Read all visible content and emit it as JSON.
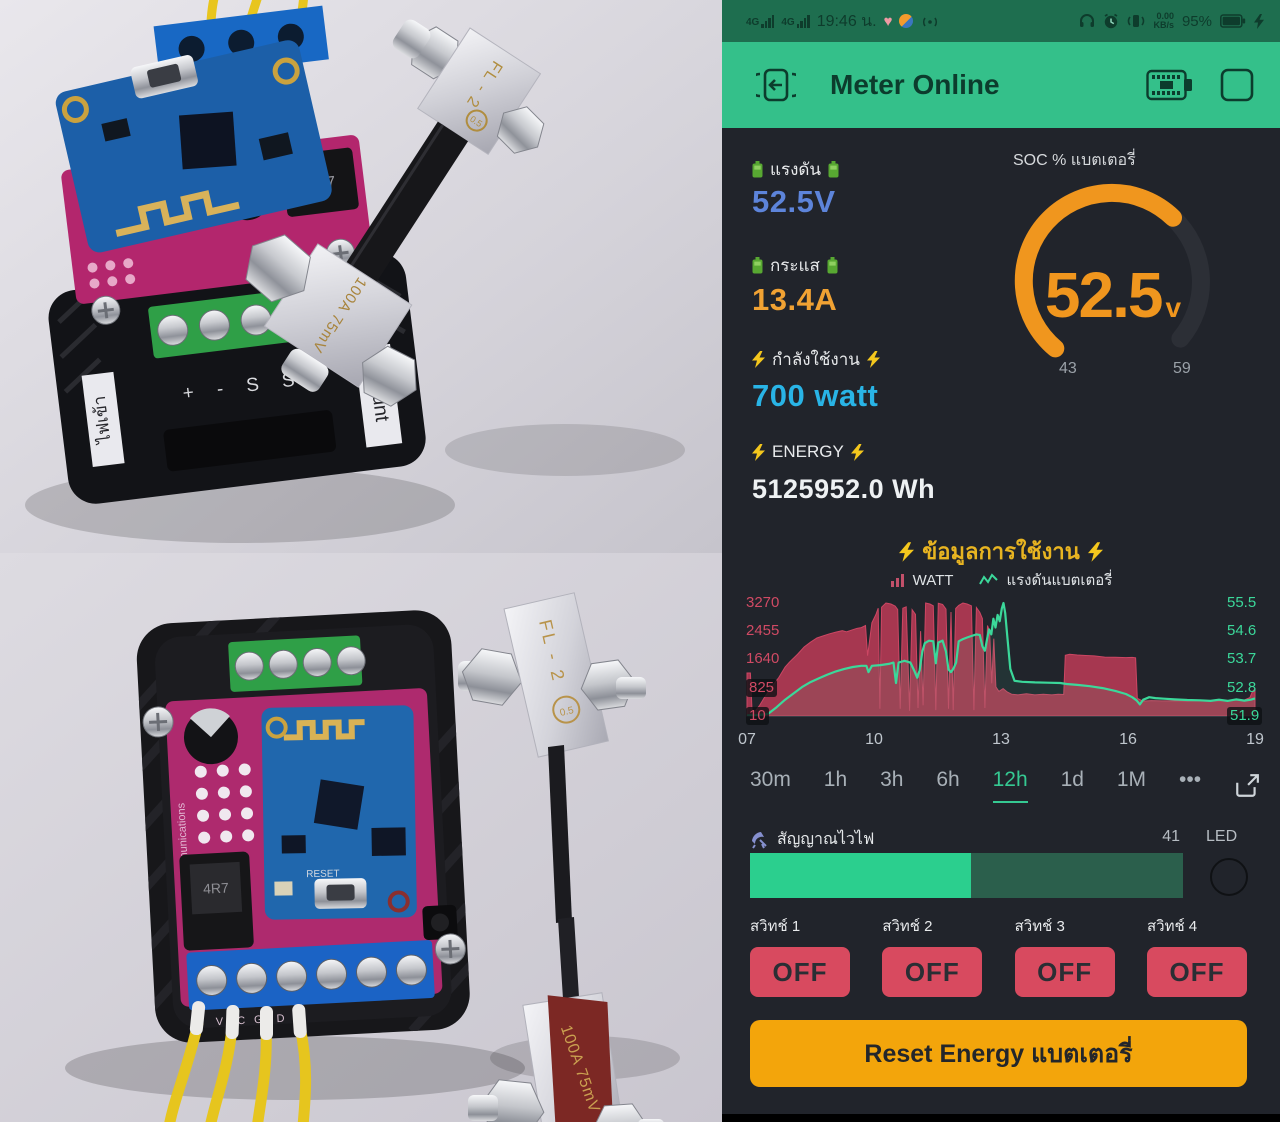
{
  "status_bar": {
    "sim1": "4G",
    "sim2": "4G",
    "time": "19:46 น.",
    "net_speed_top": "0.00",
    "net_speed_bottom": "KB/s",
    "battery_percent": "95%"
  },
  "header": {
    "title": "Meter Online"
  },
  "metrics": {
    "voltage": {
      "label": "แรงดัน",
      "value": "52.5V"
    },
    "current": {
      "label": "กระแส",
      "value": "13.4A"
    },
    "power": {
      "label": "กำลังใช้งาน",
      "value": "700 watt"
    },
    "energy": {
      "label": "ENERGY",
      "value": "5125952.0 Wh"
    }
  },
  "gauge": {
    "title": "SOC % แบตเตอรี่",
    "value": "52.5",
    "unit": "v",
    "min": "43",
    "max": "59"
  },
  "chart_data": {
    "type": "area",
    "title": "ข้อมูลการใช้งาน",
    "legend": [
      {
        "name": "WATT",
        "color": "#c2506a"
      },
      {
        "name": "แรงดันแบตเตอรี่",
        "color": "#3bd89a"
      }
    ],
    "x_ticks": [
      "07",
      "10",
      "13",
      "16",
      "19"
    ],
    "x_range": [
      7,
      19
    ],
    "grid": false,
    "legend_position": "top",
    "left_axis": {
      "name": "WATT",
      "color": "#d04a64",
      "ticks": [
        "3270",
        "2455",
        "1640",
        "825",
        "10"
      ]
    },
    "right_axis": {
      "name": "แรงดันแบตเตอรี่",
      "color": "#3bd89a",
      "ticks": [
        "55.5",
        "54.6",
        "53.7",
        "52.8",
        "51.9"
      ]
    },
    "series": [
      {
        "name": "WATT",
        "type": "area",
        "axis": "left",
        "color": "#b23a54",
        "points": [
          [
            7.0,
            1250
          ],
          [
            7.08,
            1250
          ],
          [
            7.12,
            120
          ],
          [
            7.2,
            160
          ],
          [
            7.3,
            320
          ],
          [
            7.4,
            520
          ],
          [
            7.5,
            700
          ],
          [
            7.6,
            880
          ],
          [
            7.75,
            1120
          ],
          [
            7.9,
            1420
          ],
          [
            8.0,
            1560
          ],
          [
            8.1,
            1680
          ],
          [
            8.2,
            1800
          ],
          [
            8.35,
            2000
          ],
          [
            8.5,
            2140
          ],
          [
            8.65,
            2260
          ],
          [
            8.8,
            2320
          ],
          [
            8.95,
            2380
          ],
          [
            9.1,
            2430
          ],
          [
            9.25,
            2470
          ],
          [
            9.35,
            2440
          ],
          [
            9.5,
            2500
          ],
          [
            9.6,
            2540
          ],
          [
            9.7,
            2560
          ],
          [
            9.8,
            2620
          ],
          [
            9.85,
            1750
          ],
          [
            9.95,
            2700
          ],
          [
            10.05,
            2950
          ],
          [
            10.1,
            3120
          ],
          [
            10.14,
            220
          ],
          [
            10.18,
            3150
          ],
          [
            10.28,
            3270
          ],
          [
            10.4,
            3240
          ],
          [
            10.5,
            3180
          ],
          [
            10.56,
            3080
          ],
          [
            10.62,
            220
          ],
          [
            10.68,
            3120
          ],
          [
            10.76,
            3160
          ],
          [
            10.84,
            160
          ],
          [
            10.9,
            3080
          ],
          [
            10.98,
            2940
          ],
          [
            11.04,
            240
          ],
          [
            11.1,
            2460
          ],
          [
            11.16,
            320
          ],
          [
            11.22,
            3270
          ],
          [
            11.32,
            3240
          ],
          [
            11.4,
            3190
          ],
          [
            11.46,
            180
          ],
          [
            11.52,
            3260
          ],
          [
            11.62,
            3230
          ],
          [
            11.7,
            3090
          ],
          [
            11.76,
            220
          ],
          [
            11.82,
            3010
          ],
          [
            11.87,
            180
          ],
          [
            11.93,
            3110
          ],
          [
            12.0,
            3200
          ],
          [
            12.1,
            3270
          ],
          [
            12.2,
            3240
          ],
          [
            12.3,
            3190
          ],
          [
            12.36,
            180
          ],
          [
            12.42,
            3140
          ],
          [
            12.5,
            3000
          ],
          [
            12.56,
            2820
          ],
          [
            12.62,
            240
          ],
          [
            12.68,
            2620
          ],
          [
            12.73,
            2460
          ],
          [
            12.78,
            950
          ],
          [
            12.83,
            2240
          ],
          [
            12.88,
            850
          ],
          [
            12.95,
            720
          ],
          [
            13.05,
            800
          ],
          [
            13.15,
            700
          ],
          [
            13.25,
            640
          ],
          [
            13.4,
            620
          ],
          [
            13.6,
            650
          ],
          [
            13.8,
            620
          ],
          [
            14.0,
            640
          ],
          [
            14.2,
            620
          ],
          [
            14.35,
            640
          ],
          [
            14.48,
            630
          ],
          [
            14.52,
            1760
          ],
          [
            14.62,
            1790
          ],
          [
            14.8,
            1770
          ],
          [
            15.0,
            1755
          ],
          [
            15.2,
            1745
          ],
          [
            15.45,
            1710
          ],
          [
            15.7,
            1705
          ],
          [
            15.95,
            1695
          ],
          [
            16.1,
            1700
          ],
          [
            16.18,
            1690
          ],
          [
            16.22,
            520
          ],
          [
            16.35,
            440
          ],
          [
            16.55,
            455
          ],
          [
            16.8,
            445
          ],
          [
            17.1,
            450
          ],
          [
            17.4,
            440
          ],
          [
            17.7,
            450
          ],
          [
            18.0,
            442
          ],
          [
            18.3,
            452
          ],
          [
            18.55,
            462
          ],
          [
            18.75,
            472
          ],
          [
            18.88,
            540
          ],
          [
            18.94,
            720
          ],
          [
            19.0,
            790
          ]
        ]
      },
      {
        "name": "แรงดันแบตเตอรี่",
        "type": "line",
        "axis": "right",
        "color": "#3bd89a",
        "points": [
          [
            7.0,
            51.92
          ],
          [
            7.25,
            51.93
          ],
          [
            7.5,
            51.97
          ],
          [
            7.7,
            52.18
          ],
          [
            7.9,
            52.42
          ],
          [
            8.1,
            52.62
          ],
          [
            8.3,
            52.82
          ],
          [
            8.5,
            52.98
          ],
          [
            8.7,
            53.1
          ],
          [
            8.9,
            53.22
          ],
          [
            9.1,
            53.32
          ],
          [
            9.3,
            53.4
          ],
          [
            9.5,
            53.46
          ],
          [
            9.7,
            53.5
          ],
          [
            9.82,
            53.5
          ],
          [
            9.87,
            53.3
          ],
          [
            9.95,
            53.5
          ],
          [
            10.15,
            53.52
          ],
          [
            10.35,
            53.56
          ],
          [
            10.46,
            53.6
          ],
          [
            10.52,
            52.95
          ],
          [
            10.58,
            53.6
          ],
          [
            10.72,
            53.66
          ],
          [
            10.86,
            53.6
          ],
          [
            10.96,
            53.32
          ],
          [
            11.02,
            53.12
          ],
          [
            11.08,
            53.36
          ],
          [
            11.14,
            53.95
          ],
          [
            11.2,
            54.22
          ],
          [
            11.3,
            54.3
          ],
          [
            11.4,
            54.28
          ],
          [
            11.46,
            53.58
          ],
          [
            11.52,
            54.24
          ],
          [
            11.62,
            54.3
          ],
          [
            11.7,
            53.95
          ],
          [
            11.76,
            53.38
          ],
          [
            11.82,
            53.3
          ],
          [
            11.88,
            53.42
          ],
          [
            11.94,
            53.6
          ],
          [
            12.0,
            54.28
          ],
          [
            12.1,
            54.35
          ],
          [
            12.2,
            54.4
          ],
          [
            12.3,
            54.45
          ],
          [
            12.42,
            54.5
          ],
          [
            12.5,
            54.48
          ],
          [
            12.56,
            54.12
          ],
          [
            12.62,
            53.98
          ],
          [
            12.68,
            54.42
          ],
          [
            12.72,
            54.66
          ],
          [
            12.77,
            54.5
          ],
          [
            12.82,
            55.0
          ],
          [
            12.87,
            54.72
          ],
          [
            12.92,
            55.12
          ],
          [
            12.97,
            54.92
          ],
          [
            13.02,
            55.32
          ],
          [
            13.06,
            55.5
          ],
          [
            13.1,
            55.18
          ],
          [
            13.15,
            54.4
          ],
          [
            13.22,
            53.4
          ],
          [
            13.32,
            53.02
          ],
          [
            13.5,
            52.99
          ],
          [
            13.8,
            52.97
          ],
          [
            14.1,
            52.96
          ],
          [
            14.4,
            52.95
          ],
          [
            14.55,
            52.92
          ],
          [
            14.8,
            52.89
          ],
          [
            15.1,
            52.85
          ],
          [
            15.4,
            52.79
          ],
          [
            15.7,
            52.7
          ],
          [
            15.95,
            52.6
          ],
          [
            16.1,
            52.5
          ],
          [
            16.2,
            52.4
          ],
          [
            16.28,
            52.27
          ],
          [
            16.36,
            52.42
          ],
          [
            16.5,
            52.5
          ],
          [
            16.65,
            52.47
          ],
          [
            16.85,
            52.45
          ],
          [
            17.1,
            52.43
          ],
          [
            17.4,
            52.41
          ],
          [
            17.7,
            52.4
          ],
          [
            17.95,
            52.38
          ],
          [
            18.15,
            52.42
          ],
          [
            18.35,
            52.38
          ],
          [
            18.55,
            52.43
          ],
          [
            18.75,
            52.39
          ],
          [
            18.9,
            52.42
          ],
          [
            19.0,
            52.46
          ]
        ]
      }
    ]
  },
  "time_ranges": {
    "options": [
      "30m",
      "1h",
      "3h",
      "6h",
      "12h",
      "1d",
      "1M"
    ],
    "selected": "12h",
    "more": "•••"
  },
  "wifi": {
    "label": "สัญญาณไวไฟ",
    "value": "41",
    "led_label": "LED",
    "percent": 51
  },
  "switches": {
    "items": [
      {
        "label": "สวิทช์ 1",
        "state": "OFF"
      },
      {
        "label": "สวิทช์ 2",
        "state": "OFF"
      },
      {
        "label": "สวิทช์ 3",
        "state": "OFF"
      },
      {
        "label": "สวิทช์ 4",
        "state": "OFF"
      }
    ]
  },
  "reset": {
    "label": "Reset Energy แบตเตอรี่"
  },
  "colors": {
    "header_green": "#34c08a",
    "statusbar_green": "#1e6e4f",
    "app_bg": "#21242b",
    "gauge_orange": "#f0961e",
    "voltage_blue": "#5d84da",
    "current_orange": "#f1a233",
    "power_cyan": "#29b4e6",
    "watt_red": "#b23a54",
    "volt_green": "#3bd89a",
    "switch_red": "#d84a5f",
    "reset_orange": "#f3a50b",
    "wifi_fill": "#2bcf8e"
  },
  "photos": {
    "top": {
      "case_label_left": "ไฟเข้า",
      "case_label_terminals": "+  -  S  S",
      "case_label_right": "Shunt",
      "inductor": "4R7",
      "shunt_model": "FL - 2",
      "shunt_small": "0.5",
      "shunt_rating": "100A 75mV"
    },
    "bottom": {
      "inductor": "4R7",
      "bus_label": "RS-485 communications",
      "pin_label": "VDC   GND",
      "reset_label": "RESET",
      "shunt_model": "FL - 2",
      "shunt_small": "0.5",
      "shunt_rating": "100A 75mV"
    }
  }
}
